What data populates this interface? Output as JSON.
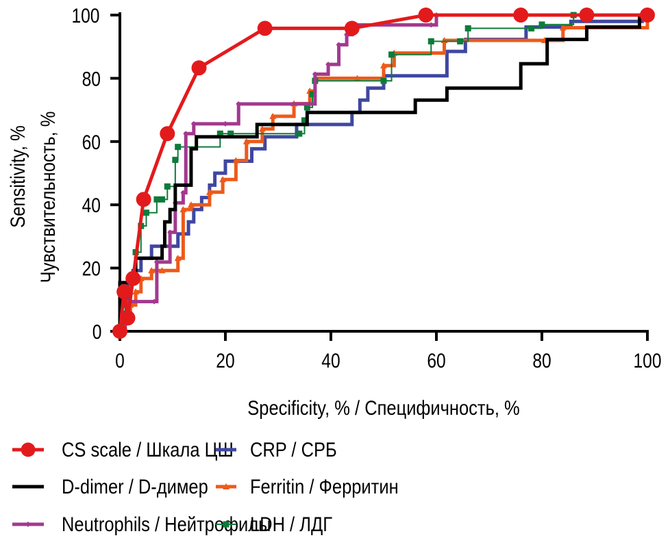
{
  "chart_data": {
    "type": "line",
    "title": "",
    "xlabel": "Specificity, % / Специфичность, %",
    "ylabel": [
      "Sensitivity, %",
      "Чувствительность, %"
    ],
    "xlim": [
      0,
      100
    ],
    "ylim": [
      0,
      100
    ],
    "xticks": [
      0,
      20,
      40,
      60,
      80,
      100
    ],
    "yticks": [
      0,
      20,
      40,
      60,
      80,
      100
    ],
    "grid": false,
    "legend_position": "bottom",
    "series": [
      {
        "name": "CS scale / Шкала ЦШ",
        "color": "#e31a1c",
        "marker": "circle",
        "step": false,
        "x": [
          0,
          0.8,
          1.5,
          2.5,
          4.5,
          9,
          15,
          27.5,
          44,
          58,
          76,
          88.5,
          100
        ],
        "y": [
          0,
          12.5,
          4.2,
          16.7,
          41.7,
          62.5,
          83.3,
          95.8,
          95.8,
          100,
          100,
          100,
          100
        ]
      },
      {
        "name": "D-dimer / D-димер",
        "color": "#000000",
        "marker": "none",
        "step": true,
        "x": [
          0,
          0,
          2.5,
          3,
          6.5,
          8,
          8.5,
          9.5,
          10.5,
          12,
          13.5,
          14.5,
          24,
          26,
          35,
          35.5,
          55,
          56,
          61.5,
          62,
          73,
          76,
          80,
          81,
          87,
          88.5,
          97.5,
          98.5
        ],
        "y": [
          0,
          15.4,
          15.4,
          23.1,
          23.1,
          26.9,
          34.6,
          38.5,
          46.2,
          46.2,
          57.7,
          61.5,
          61.5,
          65.4,
          65.4,
          69.2,
          69.2,
          73.1,
          73.1,
          76.9,
          76.9,
          84.6,
          84.6,
          92.3,
          92.3,
          96.2,
          96.2,
          100
        ]
      },
      {
        "name": "Neutrophils / Нейтрофилы",
        "color": "#a2398f",
        "marker": "diamond",
        "step": true,
        "x": [
          0,
          1,
          1.5,
          6.5,
          7,
          9.5,
          10.5,
          12,
          12.5,
          14,
          20,
          22.5,
          36,
          37,
          39.5,
          41.5,
          43,
          44,
          59,
          60,
          100
        ],
        "y": [
          0,
          3,
          9.4,
          9.4,
          21.9,
          31.3,
          40.6,
          43.8,
          62.5,
          65.6,
          65.6,
          71.9,
          71.9,
          81.3,
          84.4,
          90.6,
          93.8,
          96.9,
          96.9,
          100,
          100
        ]
      },
      {
        "name": "CRP / СРБ",
        "color": "#3f47a0",
        "marker": "none",
        "step": true,
        "x": [
          0,
          0.5,
          1.5,
          2.5,
          4,
          6,
          10,
          11,
          13,
          14,
          15.5,
          17,
          18,
          20,
          25,
          27.5,
          32.5,
          33.5,
          44,
          45.5,
          47,
          50,
          57,
          62,
          64.5,
          65.5,
          75,
          77,
          84.5,
          85.5,
          99
        ],
        "y": [
          0,
          6,
          15,
          19.2,
          23.1,
          26.9,
          26.9,
          30.8,
          34.6,
          38.5,
          42.3,
          46.2,
          50,
          53.8,
          57.7,
          61.5,
          61.5,
          65.4,
          69.2,
          73.1,
          76.9,
          80.8,
          80.8,
          88.5,
          88.5,
          92.3,
          92.3,
          96.2,
          96.2,
          98,
          100
        ]
      },
      {
        "name": "Ferritin / Ферритин",
        "color": "#ed5a1b",
        "marker": "triangle",
        "step": true,
        "x": [
          0,
          1,
          2,
          3,
          4,
          6,
          8,
          11,
          12,
          13.5,
          17,
          19.5,
          22,
          24,
          27,
          29,
          33,
          36,
          37,
          45,
          50,
          52,
          61.5,
          80.5,
          84,
          100
        ],
        "y": [
          0,
          4.2,
          8.3,
          12.5,
          16.7,
          19.2,
          19.2,
          23.1,
          38.5,
          40,
          44,
          48,
          54,
          60,
          64,
          68,
          72,
          76,
          80,
          80,
          84,
          88,
          92,
          92,
          96,
          100
        ]
      },
      {
        "name": "LDH / ЛДГ",
        "color": "#0d7b3a",
        "marker": "square",
        "step": true,
        "x": [
          0,
          0.5,
          1,
          2,
          3,
          4,
          5,
          7,
          8,
          9,
          10.5,
          11,
          19,
          21,
          34,
          35,
          35.5,
          36.5,
          37,
          50,
          51.5,
          59,
          64.5,
          66,
          78,
          80,
          86,
          100
        ],
        "y": [
          0,
          4.2,
          8.3,
          16.7,
          25,
          33.3,
          37.5,
          41.7,
          41.7,
          45.8,
          54.2,
          58.3,
          62.5,
          62.5,
          62.5,
          66.7,
          70.8,
          75,
          79.2,
          79.2,
          87.5,
          91.7,
          91.7,
          95.8,
          95.8,
          97,
          100,
          100
        ]
      }
    ]
  }
}
